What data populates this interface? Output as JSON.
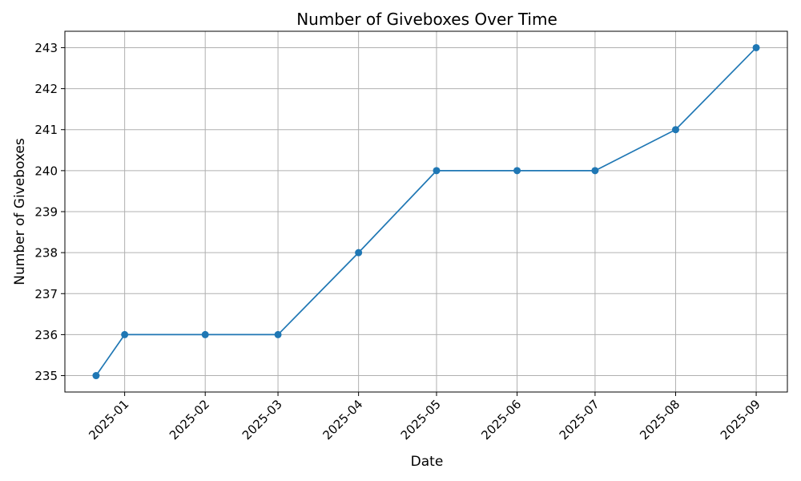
{
  "chart_data": {
    "type": "line",
    "title": "Number of Giveboxes Over Time",
    "xlabel": "Date",
    "ylabel": "Number of Giveboxes",
    "x": [
      "2024-12-21",
      "2025-01-01",
      "2025-02-01",
      "2025-03-01",
      "2025-04-01",
      "2025-05-01",
      "2025-06-01",
      "2025-07-01",
      "2025-08-01",
      "2025-09-01"
    ],
    "series": [
      {
        "values": [
          235,
          236,
          236,
          236,
          238,
          240,
          240,
          240,
          241,
          243
        ]
      }
    ],
    "x_ticks": [
      "2025-01",
      "2025-02",
      "2025-03",
      "2025-04",
      "2025-05",
      "2025-06",
      "2025-07",
      "2025-08",
      "2025-09"
    ],
    "y_ticks": [
      235,
      236,
      237,
      238,
      239,
      240,
      241,
      242,
      243
    ],
    "xlim": [
      "2024-12-09",
      "2025-09-13"
    ],
    "ylim": [
      234.6,
      243.4
    ],
    "grid": true,
    "colors": {
      "series": "#1f77b4"
    }
  }
}
